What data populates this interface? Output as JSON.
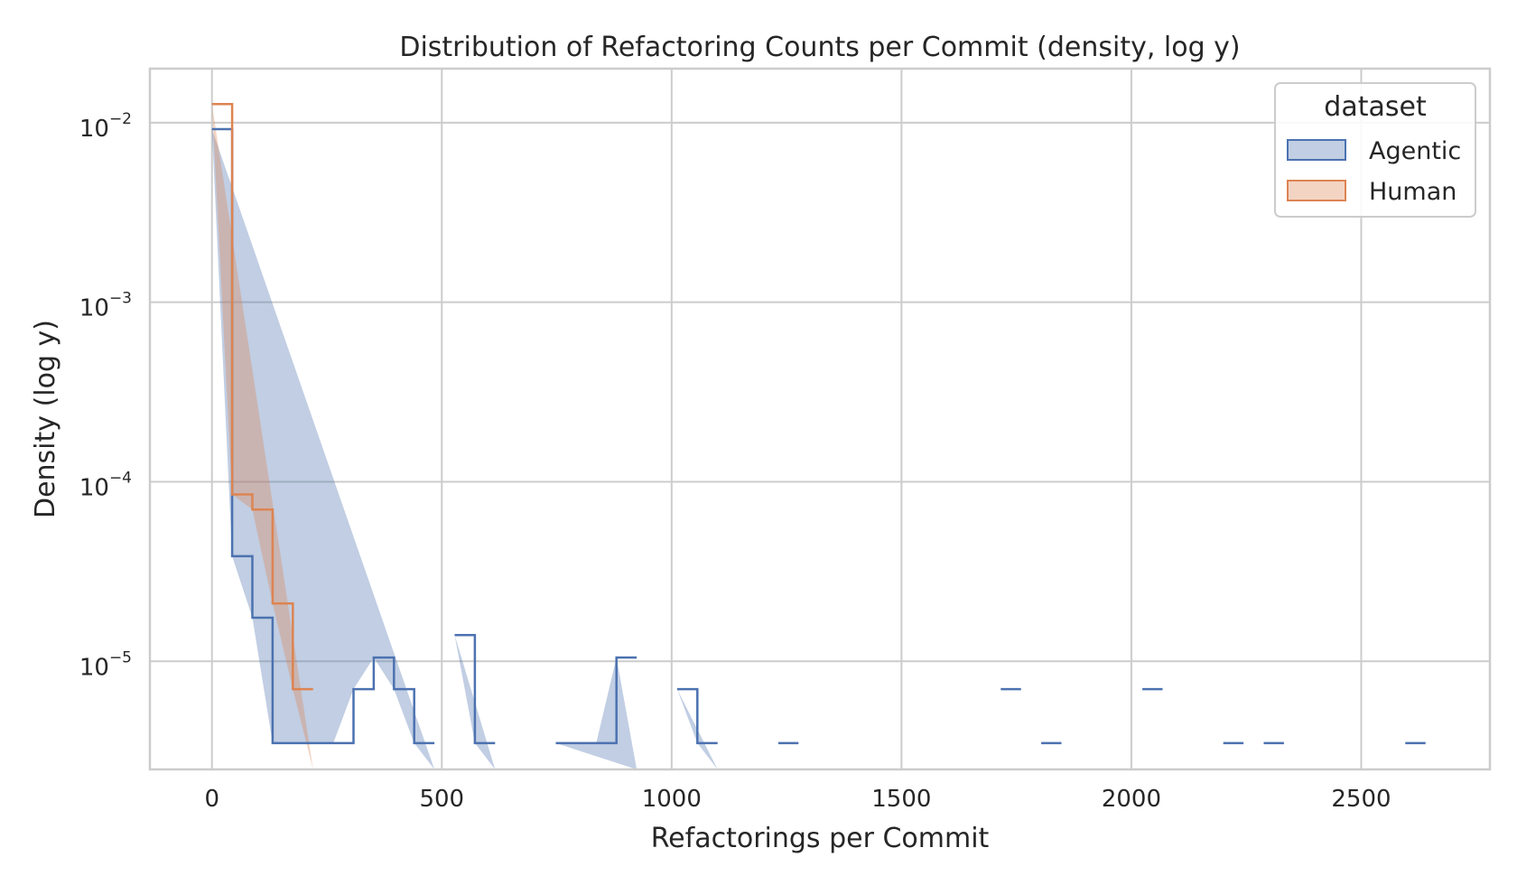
{
  "chart_data": {
    "type": "histogram",
    "title": "Distribution of Refactoring Counts per Commit (density, log y)",
    "xlabel": "Refactorings per Commit",
    "ylabel": "Density (log y)",
    "x_ticks": [
      0,
      500,
      1000,
      1500,
      2000,
      2500
    ],
    "x_tick_labels": [
      "0",
      "500",
      "1000",
      "1500",
      "2000",
      "2500"
    ],
    "y_ticks": [
      1e-05,
      0.0001,
      0.001,
      0.01
    ],
    "y_tick_bases": [
      "10",
      "10",
      "10",
      "10"
    ],
    "y_tick_exponents": [
      "−5",
      "−4",
      "−3",
      "−2"
    ],
    "xlim": [
      -135,
      2780
    ],
    "ylim": [
      2.5e-06,
      0.02
    ],
    "y_scale": "log",
    "grid": true,
    "legend": {
      "title": "dataset",
      "position": "top-right",
      "entries": [
        "Agentic",
        "Human"
      ]
    },
    "series": [
      {
        "name": "Agentic",
        "color": "#4c72b0",
        "fill": "rgba(76,114,176,0.35)",
        "bin_width": 44,
        "bins": [
          [
            0,
            0.0092
          ],
          [
            44,
            3.85e-05
          ],
          [
            88,
            1.75e-05
          ],
          [
            132,
            3.5e-06
          ],
          [
            176,
            3.5e-06
          ],
          [
            220,
            3.5e-06
          ],
          [
            264,
            3.5e-06
          ],
          [
            308,
            7e-06
          ],
          [
            352,
            1.05e-05
          ],
          [
            396,
            7e-06
          ],
          [
            440,
            3.5e-06
          ],
          [
            528,
            1.4e-05
          ],
          [
            572,
            3.5e-06
          ],
          [
            748,
            3.5e-06
          ],
          [
            792,
            3.5e-06
          ],
          [
            836,
            3.5e-06
          ],
          [
            880,
            1.05e-05
          ],
          [
            1012,
            7e-06
          ],
          [
            1056,
            3.5e-06
          ],
          [
            1232,
            3.5e-06
          ],
          [
            1716,
            7e-06
          ],
          [
            1804,
            3.5e-06
          ],
          [
            2024,
            7e-06
          ],
          [
            2200,
            3.5e-06
          ],
          [
            2288,
            3.5e-06
          ],
          [
            2596,
            3.5e-06
          ]
        ]
      },
      {
        "name": "Human",
        "color": "#dd8452",
        "fill": "rgba(221,132,82,0.35)",
        "bin_width": 44,
        "bins": [
          [
            0,
            0.0127
          ],
          [
            44,
            8.5e-05
          ],
          [
            88,
            7e-05
          ],
          [
            132,
            2.1e-05
          ],
          [
            176,
            7e-06
          ]
        ]
      }
    ]
  }
}
